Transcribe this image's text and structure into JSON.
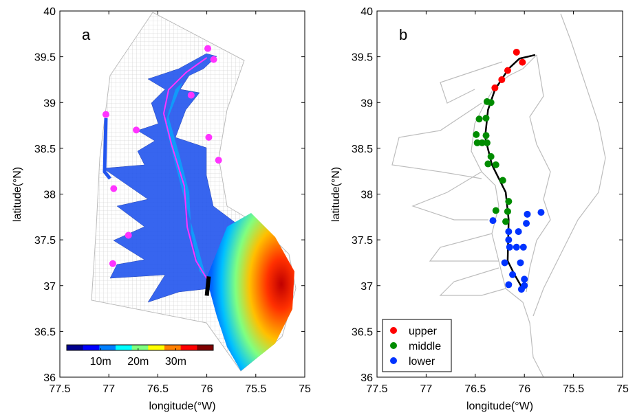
{
  "chart_data": [
    {
      "type": "scatter",
      "panel_label": "a",
      "x_label": "longitude(°W)",
      "y_label": "latitude(°N)",
      "xlim": [
        77.5,
        75
      ],
      "ylim": [
        36,
        40
      ],
      "xticks": [
        77.5,
        77,
        76.5,
        76,
        75.5,
        75
      ],
      "yticks": [
        36,
        36.5,
        37,
        37.5,
        38,
        38.5,
        39,
        39.5,
        40
      ],
      "series": [
        {
          "color": "#ff33ff",
          "x": [
            75.99,
            75.93,
            76.16,
            77.03,
            76.72,
            75.98,
            75.88,
            76.95,
            76.8,
            76.96
          ],
          "y": [
            39.59,
            39.47,
            39.08,
            38.87,
            38.7,
            38.62,
            38.37,
            38.06,
            37.55,
            37.24
          ]
        }
      ],
      "lines": [
        {
          "color": "#ff33ff",
          "width": 2,
          "x": [
            75.99,
            76.11,
            76.2,
            76.23,
            76.36,
            76.44,
            76.39,
            76.21,
            76.0
          ],
          "y": [
            37.06,
            37.27,
            37.64,
            38.09,
            38.54,
            38.88,
            39.14,
            39.33,
            39.49
          ]
        },
        {
          "color": "#000000",
          "width": 6,
          "x": [
            75.98,
            76.0
          ],
          "y": [
            37.1,
            36.89
          ]
        }
      ],
      "colorbar": {
        "clim": [
          1,
          40
        ],
        "colormap": [
          "#00008f",
          "#0000ff",
          "#0080ff",
          "#00ffff",
          "#80ff80",
          "#ffff00",
          "#ff8000",
          "#ff0000",
          "#800000"
        ],
        "ticks": [
          {
            "value": 10,
            "label": "10m"
          },
          {
            "value": 20,
            "label": "20m"
          },
          {
            "value": 30,
            "label": "30m"
          }
        ]
      }
    },
    {
      "type": "scatter",
      "panel_label": "b",
      "x_label": "longitude(°W)",
      "y_label": "latitude(°N)",
      "xlim": [
        77.5,
        75
      ],
      "ylim": [
        36,
        40
      ],
      "xticks": [
        77.5,
        77,
        76.5,
        76,
        75.5,
        75
      ],
      "yticks": [
        36,
        36.5,
        37,
        37.5,
        38,
        38.5,
        39,
        39.5,
        40
      ],
      "legend": "lower left",
      "series": [
        {
          "name": "upper",
          "color": "#ff0000",
          "x": [
            76.08,
            76.02,
            76.17,
            76.23,
            76.3
          ],
          "y": [
            39.55,
            39.44,
            39.35,
            39.25,
            39.16
          ]
        },
        {
          "name": "middle",
          "color": "#008c00",
          "x": [
            76.38,
            76.34,
            76.46,
            76.39,
            76.49,
            76.39,
            76.48,
            76.43,
            76.38,
            76.34,
            76.37,
            76.29,
            76.22,
            76.16,
            76.29,
            76.17,
            76.19
          ],
          "y": [
            39.01,
            39.0,
            38.82,
            38.83,
            38.65,
            38.64,
            38.56,
            38.56,
            38.56,
            38.41,
            38.33,
            38.32,
            38.15,
            37.92,
            37.82,
            37.81,
            37.7
          ]
        },
        {
          "name": "lower",
          "color": "#0033ff",
          "x": [
            75.97,
            75.83,
            76.32,
            75.98,
            76.16,
            76.06,
            76.16,
            76.15,
            76.08,
            76.01,
            76.2,
            76.04,
            76.12,
            76.0,
            76.16,
            76.0,
            76.03
          ],
          "y": [
            37.78,
            37.8,
            37.71,
            37.68,
            37.59,
            37.59,
            37.5,
            37.42,
            37.42,
            37.42,
            37.25,
            37.25,
            37.12,
            37.07,
            37.01,
            37.0,
            36.96
          ]
        }
      ],
      "lines": [
        {
          "color": "#000000",
          "width": 2.5,
          "x": [
            75.89,
            76.05,
            76.16,
            76.3,
            76.37,
            76.4,
            76.33,
            76.19,
            76.16,
            76.17,
            76.1,
            76.02
          ],
          "y": [
            39.52,
            39.48,
            39.37,
            39.14,
            38.92,
            38.62,
            38.32,
            38.02,
            37.72,
            37.27,
            37.12,
            36.97
          ]
        }
      ]
    }
  ]
}
